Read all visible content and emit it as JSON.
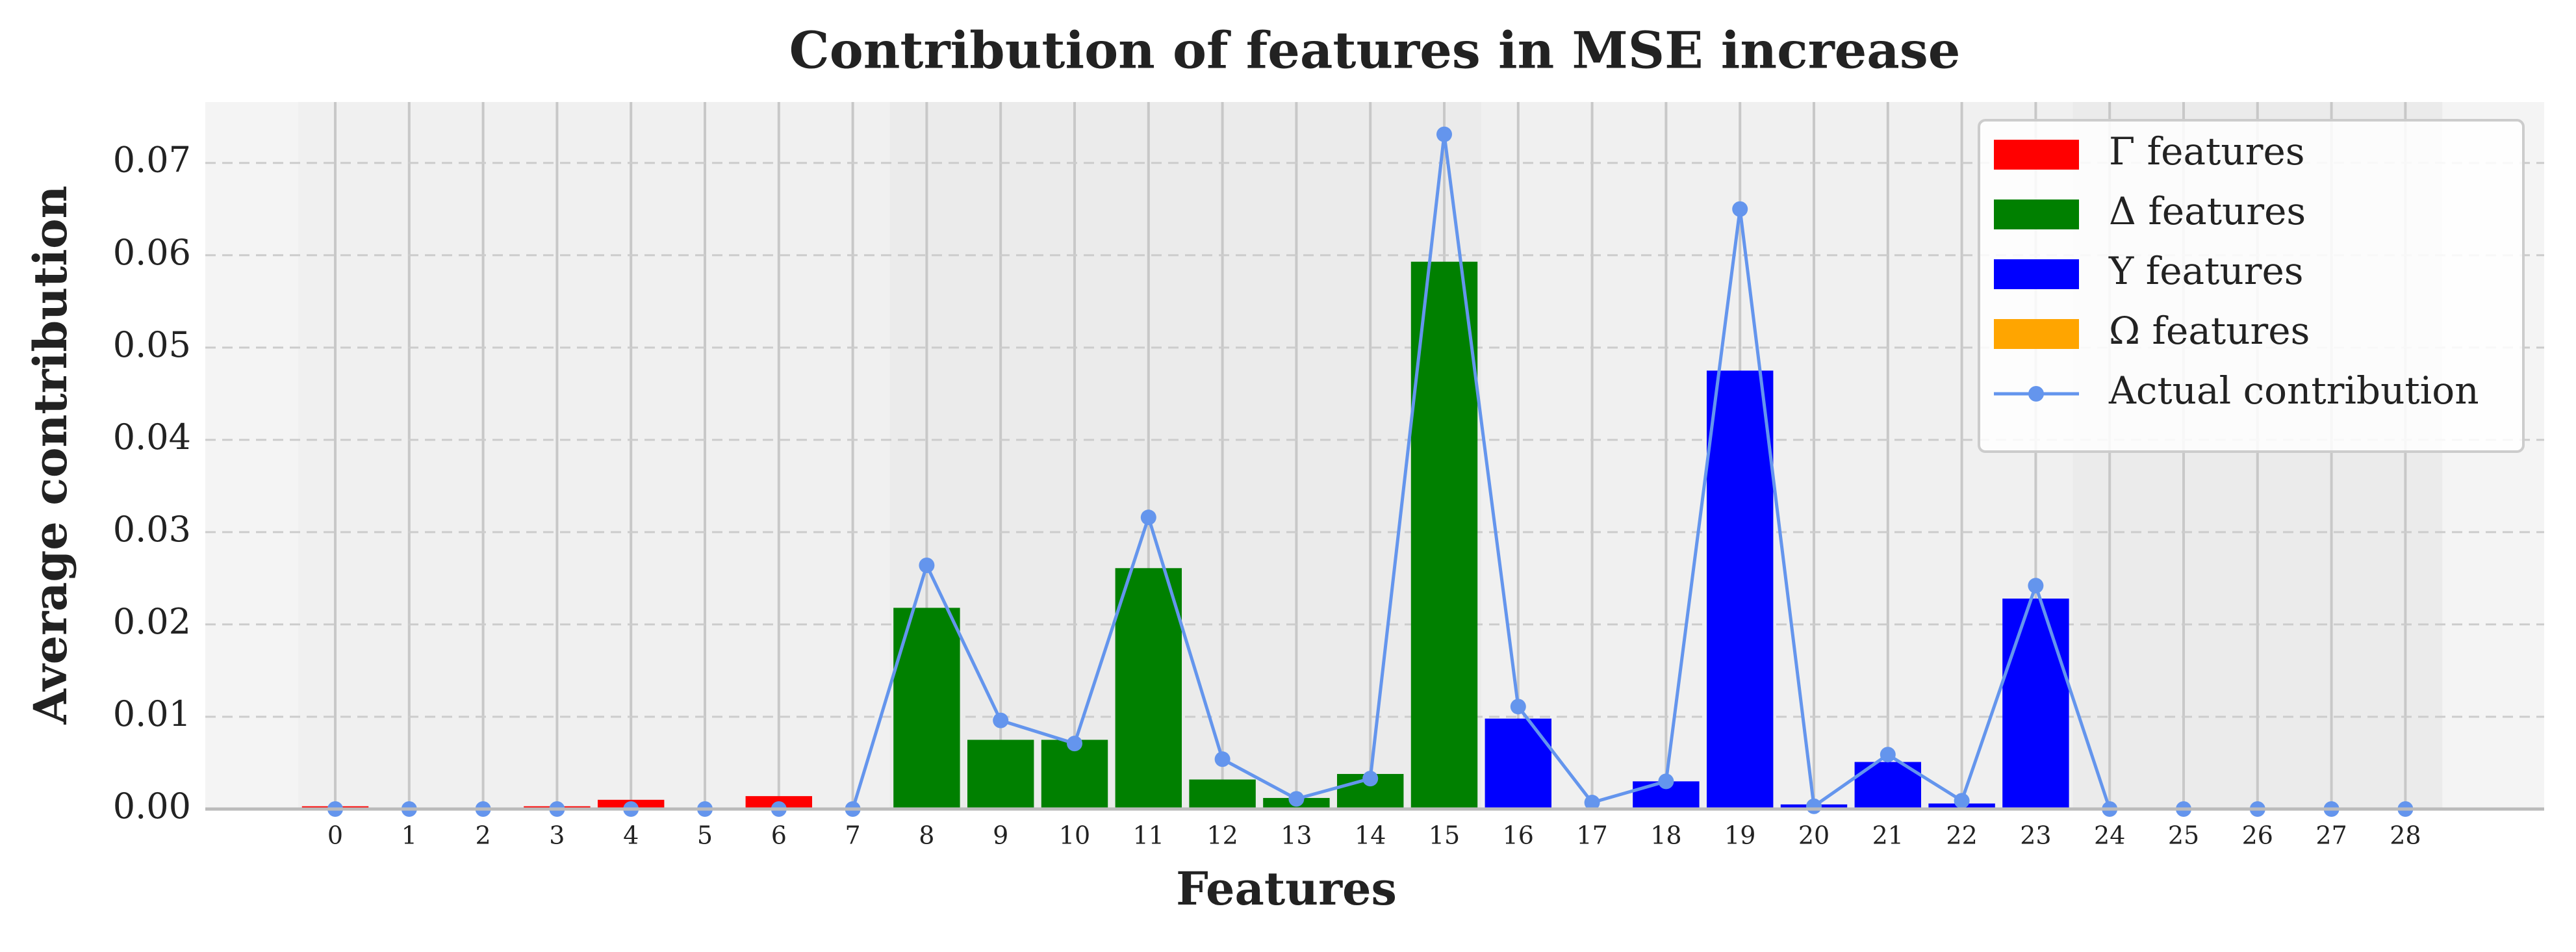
{
  "chart_data": {
    "type": "bar",
    "title": "Contribution of features in MSE increase",
    "x_label": "Features",
    "y_label": "Average contribution",
    "categories": [
      "0",
      "1",
      "2",
      "3",
      "4",
      "5",
      "6",
      "7",
      "8",
      "9",
      "10",
      "11",
      "12",
      "13",
      "14",
      "15",
      "16",
      "17",
      "18",
      "19",
      "20",
      "21",
      "22",
      "23",
      "24",
      "25",
      "26",
      "27",
      "28"
    ],
    "series": [
      {
        "name": "Γ features",
        "color": "#ff0000",
        "values": [
          0.0003,
          0,
          0,
          0.0003,
          0.001,
          0,
          0.0014,
          0,
          null,
          null,
          null,
          null,
          null,
          null,
          null,
          null,
          null,
          null,
          null,
          null,
          null,
          null,
          null,
          null,
          null,
          null,
          null,
          null,
          null
        ]
      },
      {
        "name": "Δ features",
        "color": "#008000",
        "values": [
          null,
          null,
          null,
          null,
          null,
          null,
          null,
          null,
          0.0218,
          0.0075,
          0.0075,
          0.0261,
          0.0032,
          0.0012,
          0.0038,
          0.0593,
          null,
          null,
          null,
          null,
          null,
          null,
          null,
          null,
          null,
          null,
          null,
          null,
          null
        ]
      },
      {
        "name": "Υ features",
        "color": "#0000ff",
        "values": [
          null,
          null,
          null,
          null,
          null,
          null,
          null,
          null,
          null,
          null,
          null,
          null,
          null,
          null,
          null,
          null,
          0.0098,
          0,
          0.003,
          0.0475,
          0.0005,
          0.0051,
          0.0006,
          0.0228,
          null,
          null,
          null,
          null,
          null
        ]
      },
      {
        "name": "Ω features",
        "color": "#ffa500",
        "values": [
          null,
          null,
          null,
          null,
          null,
          null,
          null,
          null,
          null,
          null,
          null,
          null,
          null,
          null,
          null,
          null,
          null,
          null,
          null,
          null,
          null,
          null,
          null,
          null,
          0,
          0,
          0,
          0,
          0
        ]
      },
      {
        "name": "Actual contribution",
        "type": "line",
        "color": "#6495ed",
        "values": [
          0,
          0,
          0,
          0,
          0,
          0,
          0,
          0,
          0.0264,
          0.0096,
          0.0071,
          0.0316,
          0.0054,
          0.0011,
          0.0033,
          0.0731,
          0.0111,
          0.0007,
          0.003,
          0.065,
          0.0003,
          0.0059,
          0.0009,
          0.0242,
          0,
          0,
          0,
          0,
          0
        ]
      }
    ],
    "ylim": [
      0,
      0.0766
    ],
    "yticks": [
      {
        "value": 0,
        "label": "0.00"
      },
      0.01,
      0.02,
      0.03,
      0.04,
      0.05,
      0.06,
      0.07
    ],
    "grid": true,
    "legend": "upper right"
  }
}
